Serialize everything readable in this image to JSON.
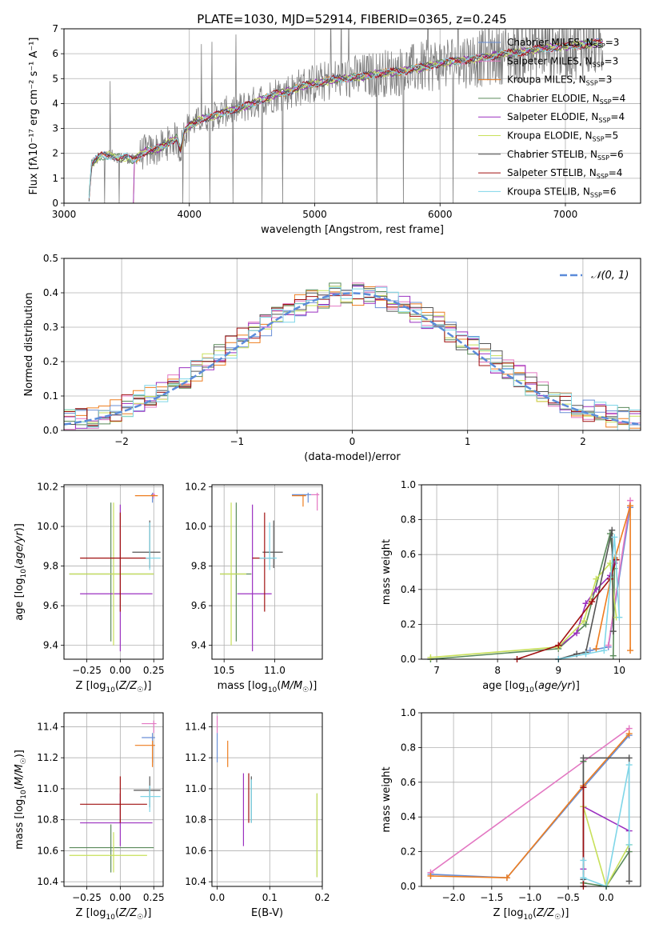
{
  "title": "PLATE=1030, MJD=52914, FIBERID=0365, z=0.245",
  "colors": {
    "chabrier_miles": "#6a8fd6",
    "salpeter_miles": "#e377c2",
    "kroupa_miles": "#ee7d1f",
    "chabrier_elodie": "#5a8a5a",
    "salpeter_elodie": "#9b30c0",
    "kroupa_elodie": "#c8e05a",
    "chabrier_stelib": "#555555",
    "salpeter_stelib": "#a01010",
    "kroupa_stelib": "#7fd6e8",
    "observed": "#7f7f7f",
    "normal": "#5b8bd9"
  },
  "legend_spectrum": [
    {
      "label": "Chabrier MILES, N",
      "sub": "SSP",
      "suffix": "=3",
      "color": "chabrier_miles"
    },
    {
      "label": "Salpeter MILES, N",
      "sub": "SSP",
      "suffix": "=3",
      "color": "salpeter_miles"
    },
    {
      "label": "Kroupa MILES, N",
      "sub": "SSP",
      "suffix": "=3",
      "color": "kroupa_miles"
    },
    {
      "label": "Chabrier ELODIE, N",
      "sub": "SSP",
      "suffix": "=4",
      "color": "chabrier_elodie"
    },
    {
      "label": "Salpeter ELODIE, N",
      "sub": "SSP",
      "suffix": "=4",
      "color": "salpeter_elodie"
    },
    {
      "label": "Kroupa ELODIE, N",
      "sub": "SSP",
      "suffix": "=5",
      "color": "kroupa_elodie"
    },
    {
      "label": "Chabrier STELIB, N",
      "sub": "SSP",
      "suffix": "=6",
      "color": "chabrier_stelib"
    },
    {
      "label": "Salpeter STELIB, N",
      "sub": "SSP",
      "suffix": "=4",
      "color": "salpeter_stelib"
    },
    {
      "label": "Kroupa STELIB, N",
      "sub": "SSP",
      "suffix": "=6",
      "color": "kroupa_stelib"
    }
  ],
  "chart_data": [
    {
      "type": "line",
      "id": "spectrum",
      "xlabel": "wavelength [Angstrom, rest frame]",
      "ylabel": "Flux [fλ10⁻¹⁷ erg cm⁻² s⁻¹ A⁻¹]",
      "xlim": [
        3000,
        7600
      ],
      "ylim": [
        0,
        7
      ],
      "xticks": [
        3000,
        4000,
        5000,
        6000,
        7000
      ],
      "yticks": [
        0,
        1,
        2,
        3,
        4,
        5,
        6,
        7
      ],
      "model_curve": {
        "x": [
          3200,
          3220,
          3300,
          3400,
          3450,
          3500,
          3550,
          3600,
          3650,
          3700,
          3750,
          3800,
          3850,
          3900,
          3930,
          3960,
          4000,
          4100,
          4200,
          4300,
          4400,
          4500,
          4600,
          4700,
          4800,
          4900,
          5000,
          5100,
          5200,
          5300,
          5400,
          5500,
          5600,
          5700,
          5800,
          5900,
          6000,
          6100,
          6200,
          6300,
          6400,
          6500,
          6600,
          6700,
          6800,
          6900,
          7000,
          7100,
          7200,
          7300
        ],
        "y": [
          0.2,
          1.6,
          1.9,
          1.9,
          1.8,
          1.85,
          1.7,
          1.9,
          2.1,
          2.1,
          2.2,
          2.3,
          2.5,
          2.6,
          2.1,
          2.9,
          3.1,
          3.4,
          3.5,
          3.7,
          3.8,
          4.0,
          4.2,
          4.4,
          4.5,
          4.7,
          4.8,
          4.9,
          5.0,
          5.05,
          5.1,
          5.2,
          5.25,
          5.3,
          5.4,
          5.5,
          5.6,
          5.7,
          5.75,
          5.8,
          5.9,
          6.0,
          6.05,
          6.1,
          6.2,
          6.25,
          6.3,
          6.35,
          6.4,
          6.45
        ]
      },
      "observed_range": [
        3200,
        7300
      ]
    },
    {
      "type": "bar",
      "id": "residuals",
      "xlabel": "(data-model)/error",
      "ylabel": "Normed distribution",
      "xlim": [
        -2.5,
        2.5
      ],
      "ylim": [
        0,
        0.5
      ],
      "xticks": [
        -2,
        -1,
        0,
        1,
        2
      ],
      "yticks": [
        0.0,
        0.1,
        0.2,
        0.3,
        0.4,
        0.5
      ],
      "legend": "𝒩(0, 1)",
      "bin_width": 0.1
    },
    {
      "type": "scatter",
      "id": "age_vs_Z",
      "xlabel": "Z [log10(Z/Z☉)]",
      "ylabel": "age  [log10(age/yr)]",
      "xlim": [
        -0.42,
        0.32
      ],
      "ylim": [
        9.33,
        10.21
      ],
      "xticks": [
        -0.25,
        0.0,
        0.25
      ],
      "yticks": [
        9.4,
        9.6,
        9.8,
        10.0,
        10.2
      ],
      "points": [
        {
          "x": 0.24,
          "xe": [
            0.23,
            0.25
          ],
          "y": 10.16,
          "ye": [
            10.12,
            10.17
          ],
          "c": "chabrier_miles"
        },
        {
          "x": 0.25,
          "xe": [
            0.24,
            0.26
          ],
          "y": 10.16,
          "ye": [
            10.14,
            10.17
          ],
          "c": "salpeter_miles"
        },
        {
          "x": 0.24,
          "xe": [
            0.11,
            0.28
          ],
          "y": 10.155,
          "ye": [
            10.15,
            10.16
          ],
          "c": "kroupa_miles"
        },
        {
          "x": -0.07,
          "xe": [
            -0.38,
            0.25
          ],
          "y": 9.76,
          "ye": [
            9.42,
            10.12
          ],
          "c": "chabrier_elodie"
        },
        {
          "x": 0.0,
          "xe": [
            -0.3,
            0.24
          ],
          "y": 9.66,
          "ye": [
            9.37,
            10.11
          ],
          "c": "salpeter_elodie"
        },
        {
          "x": -0.05,
          "xe": [
            -0.38,
            0.25
          ],
          "y": 9.76,
          "ye": [
            9.4,
            10.12
          ],
          "c": "kroupa_elodie"
        },
        {
          "x": 0.22,
          "xe": [
            0.09,
            0.3
          ],
          "y": 9.87,
          "ye": [
            9.79,
            10.03
          ],
          "c": "chabrier_stelib"
        },
        {
          "x": 0.0,
          "xe": [
            -0.3,
            0.22
          ],
          "y": 9.84,
          "ye": [
            9.57,
            10.07
          ],
          "c": "salpeter_stelib"
        },
        {
          "x": 0.22,
          "xe": [
            0.19,
            0.3
          ],
          "y": 9.84,
          "ye": [
            9.78,
            10.02
          ],
          "c": "kroupa_stelib"
        }
      ]
    },
    {
      "type": "scatter",
      "id": "age_vs_mass",
      "xlabel": "mass [log10(M/M☉)]",
      "ylabel": "",
      "xlim": [
        10.38,
        11.47
      ],
      "ylim": [
        9.33,
        10.21
      ],
      "xticks": [
        10.5,
        11.0
      ],
      "yticks": [
        9.4,
        9.6,
        9.8,
        10.0,
        10.2
      ],
      "points": [
        {
          "x": 11.33,
          "xe": [
            11.17,
            11.36
          ],
          "y": 10.16,
          "ye": [
            10.12,
            10.17
          ],
          "c": "chabrier_miles"
        },
        {
          "x": 11.42,
          "xe": [
            11.36,
            11.44
          ],
          "y": 10.16,
          "ye": [
            10.08,
            10.17
          ],
          "c": "salpeter_miles"
        },
        {
          "x": 11.28,
          "xe": [
            11.17,
            11.31
          ],
          "y": 10.155,
          "ye": [
            10.1,
            10.16
          ],
          "c": "kroupa_miles"
        },
        {
          "x": 10.62,
          "xe": [
            10.46,
            10.77
          ],
          "y": 9.76,
          "ye": [
            9.42,
            10.12
          ],
          "c": "chabrier_elodie"
        },
        {
          "x": 10.78,
          "xe": [
            10.63,
            10.97
          ],
          "y": 9.66,
          "ye": [
            9.37,
            10.11
          ],
          "c": "salpeter_elodie"
        },
        {
          "x": 10.57,
          "xe": [
            10.46,
            10.72
          ],
          "y": 9.76,
          "ye": [
            9.4,
            10.12
          ],
          "c": "kroupa_elodie"
        },
        {
          "x": 10.99,
          "xe": [
            10.88,
            11.08
          ],
          "y": 9.87,
          "ye": [
            9.79,
            10.03
          ],
          "c": "chabrier_stelib"
        },
        {
          "x": 10.9,
          "xe": [
            10.78,
            11.0
          ],
          "y": 9.84,
          "ye": [
            9.57,
            10.07
          ],
          "c": "salpeter_stelib"
        },
        {
          "x": 10.95,
          "xe": [
            10.85,
            11.02
          ],
          "y": 9.84,
          "ye": [
            9.78,
            10.02
          ],
          "c": "kroupa_stelib"
        }
      ]
    },
    {
      "type": "line",
      "id": "massweight_vs_age",
      "xlabel": "age  [log10(age/yr)]",
      "ylabel": "mass weight",
      "xlim": [
        6.75,
        10.35
      ],
      "ylim": [
        0,
        1.0
      ],
      "xticks": [
        7,
        8,
        9,
        10
      ],
      "yticks": [
        0.0,
        0.2,
        0.4,
        0.6,
        0.8,
        1.0
      ],
      "series": [
        {
          "c": "chabrier_miles",
          "x": [
            9.52,
            9.82,
            10.18
          ],
          "y": [
            0.05,
            0.07,
            0.87
          ]
        },
        {
          "c": "salpeter_miles",
          "x": [
            9.82,
            10.18
          ],
          "y": [
            0.08,
            0.91
          ]
        },
        {
          "c": "kroupa_miles",
          "x": [
            9.62,
            9.93,
            10.18,
            10.18
          ],
          "y": [
            0.06,
            0.58,
            0.88,
            0.05
          ]
        },
        {
          "c": "chabrier_elodie",
          "x": [
            6.9,
            9.0,
            9.45,
            9.85,
            9.92,
            9.9
          ],
          "y": [
            0.0,
            0.06,
            0.2,
            0.72,
            0.52,
            0.02
          ]
        },
        {
          "c": "salpeter_elodie",
          "x": [
            9.0,
            9.3,
            9.45,
            9.62,
            9.85,
            9.92
          ],
          "y": [
            0.07,
            0.15,
            0.32,
            0.4,
            0.48,
            0.55
          ]
        },
        {
          "c": "kroupa_elodie",
          "x": [
            6.9,
            9.0,
            9.42,
            9.62,
            9.85,
            9.95
          ],
          "y": [
            0.01,
            0.07,
            0.22,
            0.46,
            0.55,
            0.24
          ]
        },
        {
          "c": "chabrier_stelib",
          "x": [
            9.0,
            9.3,
            9.45,
            9.88,
            9.9
          ],
          "y": [
            0.0,
            0.03,
            0.04,
            0.74,
            0.16
          ]
        },
        {
          "c": "salpeter_stelib",
          "x": [
            8.32,
            9.0,
            9.55,
            9.85,
            9.95
          ],
          "y": [
            0.0,
            0.08,
            0.33,
            0.46,
            0.57
          ]
        },
        {
          "c": "kroupa_stelib",
          "x": [
            9.0,
            9.45,
            9.75,
            9.92,
            10.0
          ],
          "y": [
            0.0,
            0.03,
            0.05,
            0.7,
            0.24
          ]
        }
      ]
    },
    {
      "type": "scatter",
      "id": "mass_vs_Z",
      "xlabel": "Z [log10(Z/Z☉)]",
      "ylabel": "mass [log10(M/M☉)]",
      "xlim": [
        -0.42,
        0.32
      ],
      "ylim": [
        10.37,
        11.49
      ],
      "xticks": [
        -0.25,
        0.0,
        0.25
      ],
      "yticks": [
        10.4,
        10.6,
        10.8,
        11.0,
        11.2,
        11.4
      ],
      "points": [
        {
          "x": 0.24,
          "xe": [
            0.16,
            0.26
          ],
          "y": 11.33,
          "ye": [
            11.17,
            11.36
          ],
          "c": "chabrier_miles"
        },
        {
          "x": 0.25,
          "xe": [
            0.16,
            0.27
          ],
          "y": 11.42,
          "ye": [
            11.36,
            11.44
          ],
          "c": "salpeter_miles"
        },
        {
          "x": 0.24,
          "xe": [
            0.11,
            0.26
          ],
          "y": 11.28,
          "ye": [
            11.14,
            11.31
          ],
          "c": "kroupa_miles"
        },
        {
          "x": -0.07,
          "xe": [
            -0.38,
            0.25
          ],
          "y": 10.62,
          "ye": [
            10.46,
            10.77
          ],
          "c": "chabrier_elodie"
        },
        {
          "x": 0.0,
          "xe": [
            -0.3,
            0.24
          ],
          "y": 10.78,
          "ye": [
            10.63,
            10.97
          ],
          "c": "salpeter_elodie"
        },
        {
          "x": -0.05,
          "xe": [
            -0.38,
            0.2
          ],
          "y": 10.57,
          "ye": [
            10.46,
            10.72
          ],
          "c": "kroupa_elodie"
        },
        {
          "x": 0.22,
          "xe": [
            0.1,
            0.3
          ],
          "y": 10.99,
          "ye": [
            10.88,
            11.08
          ],
          "c": "chabrier_stelib"
        },
        {
          "x": 0.0,
          "xe": [
            -0.3,
            0.2
          ],
          "y": 10.9,
          "ye": [
            10.78,
            11.08
          ],
          "c": "salpeter_stelib"
        },
        {
          "x": 0.22,
          "xe": [
            0.15,
            0.3
          ],
          "y": 10.95,
          "ye": [
            10.85,
            11.02
          ],
          "c": "kroupa_stelib"
        }
      ]
    },
    {
      "type": "scatter",
      "id": "mass_vs_ebv",
      "xlabel": "E(B-V)",
      "ylabel": "",
      "xlim": [
        -0.01,
        0.2
      ],
      "ylim": [
        10.37,
        11.49
      ],
      "xticks": [
        0.0,
        0.1,
        0.2
      ],
      "yticks": [
        10.4,
        10.6,
        10.8,
        11.0,
        11.2,
        11.4
      ],
      "points": [
        {
          "x": 0.0,
          "ye": [
            11.17,
            11.36
          ],
          "y": 11.33,
          "c": "chabrier_miles"
        },
        {
          "x": 0.0,
          "ye": [
            11.36,
            11.47
          ],
          "y": 11.42,
          "c": "salpeter_miles"
        },
        {
          "x": 0.02,
          "ye": [
            11.14,
            11.31
          ],
          "y": 11.28,
          "c": "kroupa_miles"
        },
        {
          "x": 0.19,
          "ye": [
            10.43,
            10.97
          ],
          "y": 10.62,
          "c": "chabrier_elodie"
        },
        {
          "x": 0.05,
          "ye": [
            10.63,
            11.1
          ],
          "y": 10.78,
          "c": "salpeter_elodie"
        },
        {
          "x": 0.19,
          "ye": [
            10.43,
            10.97
          ],
          "y": 10.57,
          "c": "kroupa_elodie"
        },
        {
          "x": 0.065,
          "ye": [
            10.78,
            11.08
          ],
          "y": 10.99,
          "c": "chabrier_stelib"
        },
        {
          "x": 0.06,
          "ye": [
            10.78,
            11.1
          ],
          "y": 10.9,
          "c": "salpeter_stelib"
        },
        {
          "x": 0.065,
          "ye": [
            10.78,
            11.06
          ],
          "y": 10.95,
          "c": "kroupa_stelib"
        }
      ]
    },
    {
      "type": "line",
      "id": "massweight_vs_Z",
      "xlabel": "Z [log10(Z/Z☉)]",
      "ylabel": "mass weight",
      "xlim": [
        -2.42,
        0.45
      ],
      "ylim": [
        0,
        1.0
      ],
      "xticks": [
        -2.0,
        -1.5,
        -1.0,
        -0.5,
        0.0
      ],
      "yticks": [
        0.0,
        0.2,
        0.4,
        0.6,
        0.8,
        1.0
      ],
      "series": [
        {
          "c": "chabrier_miles",
          "x": [
            -2.3,
            -1.3,
            -0.3,
            0.3
          ],
          "y": [
            0.07,
            0.05,
            0.57,
            0.87
          ]
        },
        {
          "c": "salpeter_miles",
          "x": [
            -2.3,
            0.3
          ],
          "y": [
            0.08,
            0.91
          ]
        },
        {
          "c": "kroupa_miles",
          "x": [
            -2.3,
            -1.3,
            -0.3,
            0.3
          ],
          "y": [
            0.06,
            0.05,
            0.58,
            0.88
          ]
        },
        {
          "c": "chabrier_elodie",
          "x": [
            -0.3,
            -0.3,
            0.0,
            0.3
          ],
          "y": [
            0.72,
            0.02,
            0.0,
            0.2
          ]
        },
        {
          "c": "salpeter_elodie",
          "x": [
            -0.3,
            -0.3,
            0.3
          ],
          "y": [
            0.1,
            0.46,
            0.32
          ]
        },
        {
          "c": "kroupa_elodie",
          "x": [
            -0.3,
            0.0,
            0.3
          ],
          "y": [
            0.46,
            0.0,
            0.24
          ]
        },
        {
          "c": "chabrier_stelib",
          "x": [
            -0.3,
            -0.3,
            0.3,
            0.3
          ],
          "y": [
            0.04,
            0.74,
            0.74,
            0.03
          ]
        },
        {
          "c": "salpeter_stelib",
          "x": [
            -0.3,
            -0.3
          ],
          "y": [
            0.0,
            0.57
          ]
        },
        {
          "c": "kroupa_stelib",
          "x": [
            -0.3,
            -0.3,
            0.0,
            0.3,
            0.3
          ],
          "y": [
            0.15,
            0.05,
            0.0,
            0.7,
            0.24
          ]
        }
      ]
    }
  ]
}
